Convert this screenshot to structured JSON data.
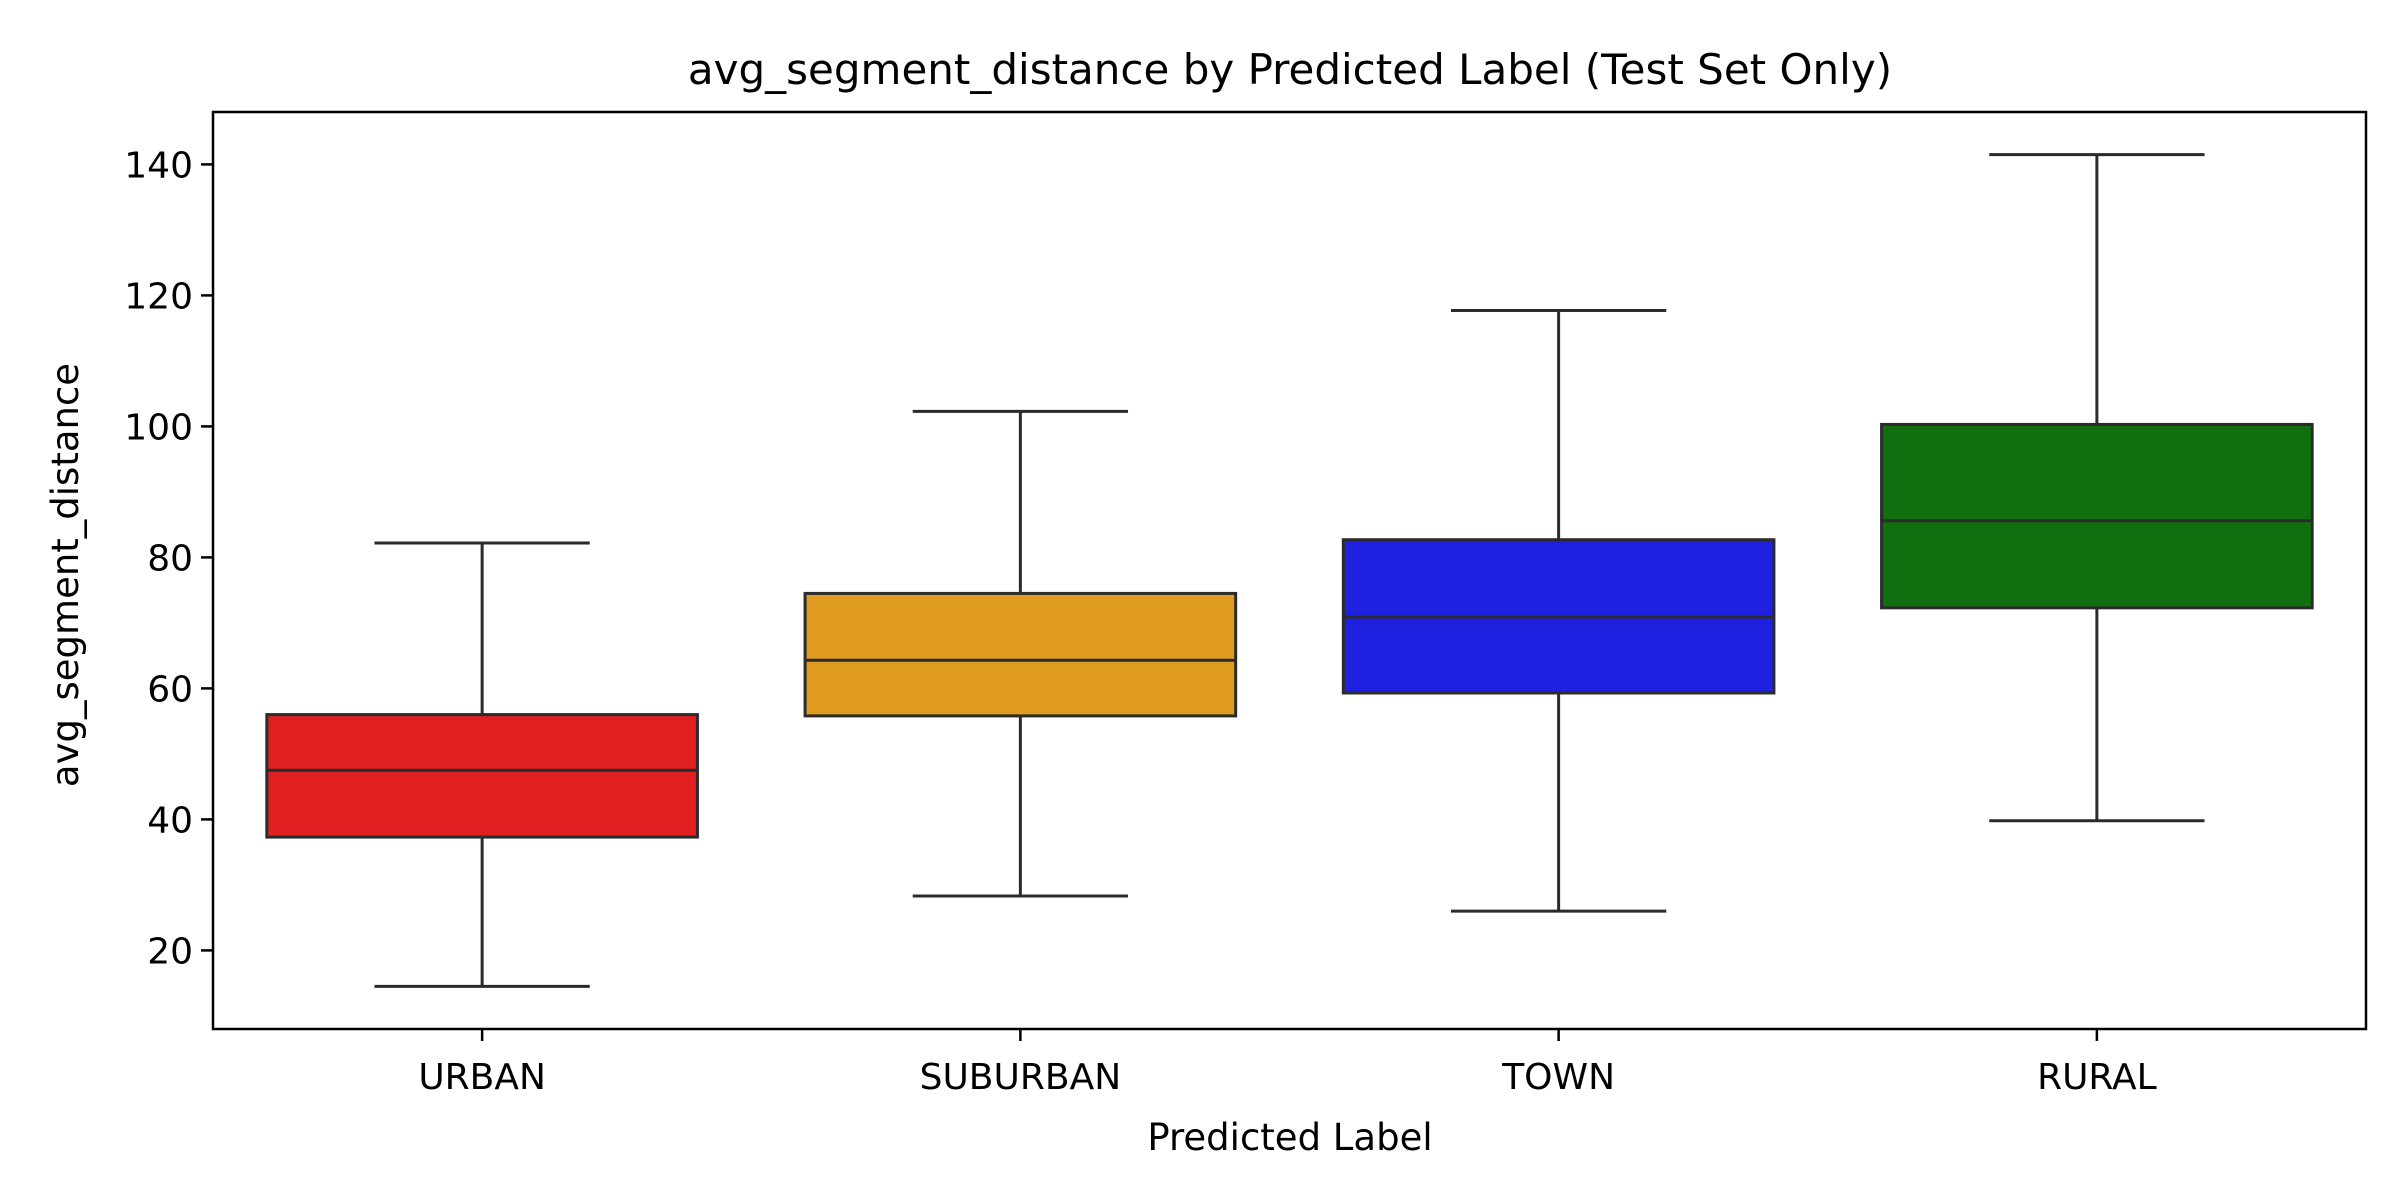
{
  "chart_data": {
    "type": "box",
    "title": "avg_segment_distance by Predicted Label (Test Set Only)",
    "xlabel": "Predicted Label",
    "ylabel": "avg_segment_distance",
    "ylim": [
      8,
      148
    ],
    "yticks": [
      20,
      40,
      60,
      80,
      100,
      120,
      140
    ],
    "grid": false,
    "categories": [
      "URBAN",
      "SUBURBAN",
      "TOWN",
      "RURAL"
    ],
    "colors": [
      "#e02020",
      "#e09c20",
      "#2020e0",
      "#107010"
    ],
    "series": [
      {
        "values": [
          {
            "whisker_low": 14.5,
            "q1": 37.3,
            "median": 47.5,
            "q3": 56.0,
            "whisker_high": 82.2
          },
          {
            "whisker_low": 28.3,
            "q1": 55.8,
            "median": 64.3,
            "q3": 74.5,
            "whisker_high": 102.3
          },
          {
            "whisker_low": 26.0,
            "q1": 59.3,
            "median": 70.9,
            "q3": 82.7,
            "whisker_high": 117.7
          },
          {
            "whisker_low": 39.8,
            "q1": 72.3,
            "median": 85.6,
            "q3": 100.3,
            "whisker_high": 141.5
          }
        ]
      }
    ]
  }
}
